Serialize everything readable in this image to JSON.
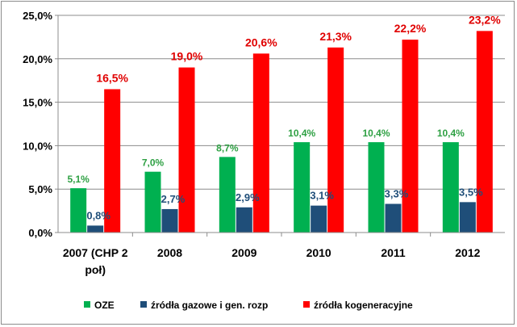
{
  "chart_data": {
    "type": "bar",
    "categories": [
      "2007 (CHP 2 poł)",
      "2008",
      "2009",
      "2010",
      "2011",
      "2012"
    ],
    "series": [
      {
        "name": "OZE",
        "values": [
          5.1,
          7.0,
          8.7,
          10.4,
          10.4,
          10.4
        ],
        "labels": [
          "5,1%",
          "7,0%",
          "8,7%",
          "10,4%",
          "10,4%",
          "10,4%"
        ],
        "color": "#00b050",
        "label_color": "#2ea043"
      },
      {
        "name": "źródła gazowe i gen. rozp",
        "values": [
          0.8,
          2.7,
          2.9,
          3.1,
          3.3,
          3.5
        ],
        "labels": [
          "0,8%",
          "2,7%",
          "2,9%",
          "3,1%",
          "3,3%",
          "3,5%"
        ],
        "color": "#1f4e79",
        "label_color": "#1f4e79"
      },
      {
        "name": "źródła kogeneracyjne",
        "values": [
          16.5,
          19.0,
          20.6,
          21.3,
          22.2,
          23.2
        ],
        "labels": [
          "16,5%",
          "19,0%",
          "20,6%",
          "21,3%",
          "22,2%",
          "23,2%"
        ],
        "color": "#ff0000",
        "label_color": "#e00000"
      }
    ],
    "yticks": [
      "0,0%",
      "5,0%",
      "10,0%",
      "15,0%",
      "20,0%",
      "25,0%"
    ],
    "ylim": [
      0,
      25
    ],
    "grid": true,
    "legend": "bottom",
    "category_lines": [
      [
        "2007 (CHP 2",
        "poł)"
      ],
      [
        "2008"
      ],
      [
        "2009"
      ],
      [
        "2010"
      ],
      [
        "2011"
      ],
      [
        "2012"
      ]
    ]
  }
}
